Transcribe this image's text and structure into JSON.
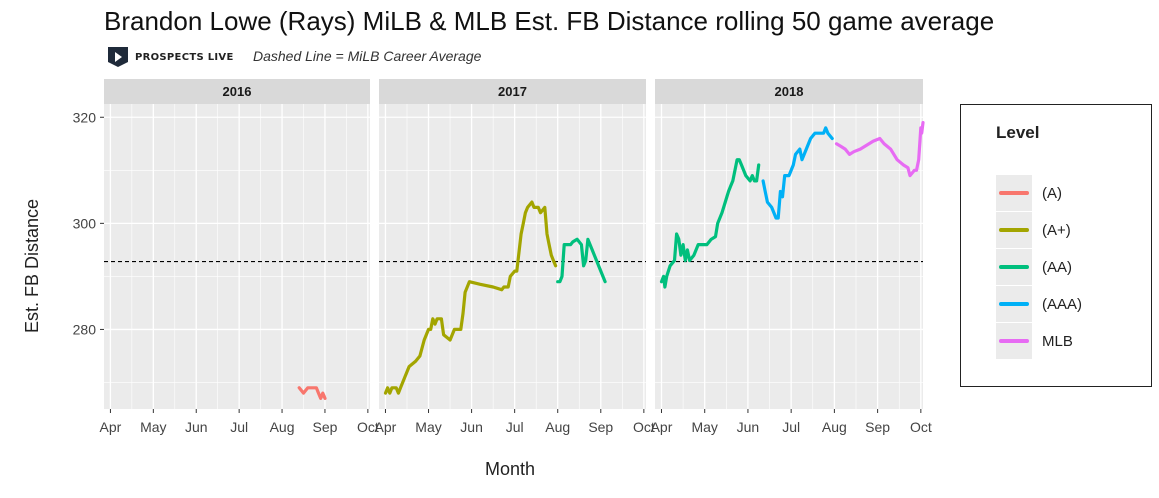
{
  "title": "Brandon Lowe (Rays) MiLB & MLB Est. FB Distance rolling 50 game average",
  "subtitle": "Dashed Line = MiLB Career Average",
  "logo_text": "PROSPECTS LIVE",
  "colors": {
    "panel_bg": "#ebebeb",
    "strip_bg": "#d9d9d9",
    "grid": "#ffffff",
    "avg_line": "#000000"
  },
  "legend": {
    "title": "Level",
    "items": [
      {
        "label": "(A)",
        "color": "#F8766D"
      },
      {
        "label": "(A+)",
        "color": "#A3A500"
      },
      {
        "label": "(AA)",
        "color": "#00BF7D"
      },
      {
        "label": "(AAA)",
        "color": "#00B0F6"
      },
      {
        "label": "MLB",
        "color": "#E76BF3"
      }
    ]
  },
  "chart_data": {
    "type": "line",
    "title": "Brandon Lowe (Rays) MiLB & MLB Est. FB Distance rolling 50 game average",
    "xlabel": "Month",
    "ylabel": "Est. FB Distance",
    "ylim": [
      265,
      322.5
    ],
    "yticks": [
      280,
      300,
      320
    ],
    "xticks": [
      "Apr",
      "May",
      "Jun",
      "Jul",
      "Aug",
      "Sep",
      "Oct"
    ],
    "xlim_months": [
      3.85,
      10.05
    ],
    "reference_line": {
      "value": 292.8,
      "label": "MiLB Career Average",
      "style": "dashed"
    },
    "grid": true,
    "legend_position": "right",
    "facets": [
      {
        "label": "2016",
        "series": [
          {
            "name": "(A)",
            "points": [
              [
                8.4,
                269
              ],
              [
                8.5,
                268
              ],
              [
                8.6,
                269
              ],
              [
                8.7,
                269
              ],
              [
                8.8,
                269
              ],
              [
                8.85,
                268
              ],
              [
                8.9,
                267
              ],
              [
                8.95,
                268
              ],
              [
                9.0,
                267
              ]
            ]
          }
        ]
      },
      {
        "label": "2017",
        "series": [
          {
            "name": "(A+)",
            "points": [
              [
                4.0,
                268
              ],
              [
                4.05,
                269
              ],
              [
                4.1,
                268
              ],
              [
                4.15,
                269
              ],
              [
                4.25,
                269
              ],
              [
                4.3,
                268
              ],
              [
                4.35,
                269
              ],
              [
                4.45,
                271
              ],
              [
                4.55,
                273
              ],
              [
                4.7,
                274
              ],
              [
                4.8,
                275
              ],
              [
                4.9,
                278
              ],
              [
                5.0,
                280
              ],
              [
                5.05,
                280
              ],
              [
                5.1,
                282
              ],
              [
                5.15,
                281
              ],
              [
                5.2,
                282
              ],
              [
                5.3,
                282
              ],
              [
                5.35,
                279
              ],
              [
                5.5,
                278
              ],
              [
                5.6,
                280
              ],
              [
                5.75,
                280
              ],
              [
                5.8,
                283
              ],
              [
                5.85,
                287
              ],
              [
                5.95,
                289
              ],
              [
                6.2,
                288.5
              ],
              [
                6.5,
                288
              ],
              [
                6.7,
                287.5
              ],
              [
                6.75,
                288
              ],
              [
                6.85,
                288
              ],
              [
                6.9,
                290
              ],
              [
                7.0,
                291
              ],
              [
                7.05,
                291
              ],
              [
                7.15,
                298
              ],
              [
                7.2,
                300
              ],
              [
                7.25,
                302
              ],
              [
                7.3,
                303
              ],
              [
                7.4,
                304
              ],
              [
                7.45,
                303
              ],
              [
                7.55,
                303
              ],
              [
                7.6,
                302
              ],
              [
                7.7,
                303
              ],
              [
                7.75,
                298
              ],
              [
                7.8,
                296
              ],
              [
                7.85,
                294
              ],
              [
                7.9,
                293
              ],
              [
                7.95,
                292
              ]
            ]
          },
          {
            "name": "(AA)",
            "points": [
              [
                8.0,
                289
              ],
              [
                8.05,
                289
              ],
              [
                8.1,
                290
              ],
              [
                8.15,
                296
              ],
              [
                8.2,
                296
              ],
              [
                8.3,
                296
              ],
              [
                8.35,
                296.5
              ],
              [
                8.45,
                297
              ],
              [
                8.55,
                296
              ],
              [
                8.6,
                292
              ],
              [
                8.65,
                293
              ],
              [
                8.7,
                297
              ],
              [
                8.8,
                295
              ],
              [
                8.9,
                293
              ],
              [
                9.0,
                291
              ],
              [
                9.1,
                289
              ]
            ]
          }
        ]
      },
      {
        "label": "2018",
        "series": [
          {
            "name": "(AA)",
            "points": [
              [
                4.0,
                289
              ],
              [
                4.05,
                290
              ],
              [
                4.08,
                288
              ],
              [
                4.12,
                290
              ],
              [
                4.2,
                292
              ],
              [
                4.3,
                293
              ],
              [
                4.35,
                298
              ],
              [
                4.4,
                297
              ],
              [
                4.45,
                294
              ],
              [
                4.5,
                296
              ],
              [
                4.55,
                293
              ],
              [
                4.6,
                295
              ],
              [
                4.65,
                293
              ],
              [
                4.75,
                294
              ],
              [
                4.85,
                296
              ],
              [
                5.05,
                296
              ],
              [
                5.15,
                297
              ],
              [
                5.25,
                297.5
              ],
              [
                5.3,
                300
              ],
              [
                5.4,
                302
              ],
              [
                5.55,
                306
              ],
              [
                5.6,
                307
              ],
              [
                5.65,
                308
              ],
              [
                5.75,
                312
              ],
              [
                5.8,
                312
              ],
              [
                5.85,
                311
              ],
              [
                5.95,
                309
              ],
              [
                6.05,
                308
              ],
              [
                6.1,
                309
              ],
              [
                6.15,
                308
              ],
              [
                6.2,
                308
              ],
              [
                6.25,
                311
              ]
            ]
          },
          {
            "name": "(AAA)",
            "points": [
              [
                6.35,
                308
              ],
              [
                6.4,
                306
              ],
              [
                6.45,
                304
              ],
              [
                6.55,
                303
              ],
              [
                6.65,
                301
              ],
              [
                6.7,
                301
              ],
              [
                6.75,
                306
              ],
              [
                6.8,
                305
              ],
              [
                6.85,
                309
              ],
              [
                6.95,
                309
              ],
              [
                7.05,
                311
              ],
              [
                7.1,
                313
              ],
              [
                7.2,
                314
              ],
              [
                7.25,
                312
              ],
              [
                7.35,
                314
              ],
              [
                7.45,
                316
              ],
              [
                7.55,
                317
              ],
              [
                7.6,
                317
              ],
              [
                7.75,
                317
              ],
              [
                7.8,
                318
              ],
              [
                7.85,
                317
              ],
              [
                7.95,
                316
              ]
            ]
          },
          {
            "name": "MLB",
            "points": [
              [
                8.05,
                315
              ],
              [
                8.15,
                314.5
              ],
              [
                8.25,
                314
              ],
              [
                8.35,
                313
              ],
              [
                8.45,
                313.5
              ],
              [
                8.6,
                314
              ],
              [
                8.9,
                315.5
              ],
              [
                9.05,
                316
              ],
              [
                9.15,
                315
              ],
              [
                9.3,
                314
              ],
              [
                9.45,
                312
              ],
              [
                9.6,
                311
              ],
              [
                9.7,
                310.5
              ],
              [
                9.75,
                309
              ],
              [
                9.8,
                309.5
              ],
              [
                9.85,
                310
              ],
              [
                9.9,
                310
              ],
              [
                9.95,
                312
              ],
              [
                10.0,
                318
              ],
              [
                10.02,
                317
              ],
              [
                10.05,
                319
              ]
            ]
          }
        ]
      }
    ]
  }
}
